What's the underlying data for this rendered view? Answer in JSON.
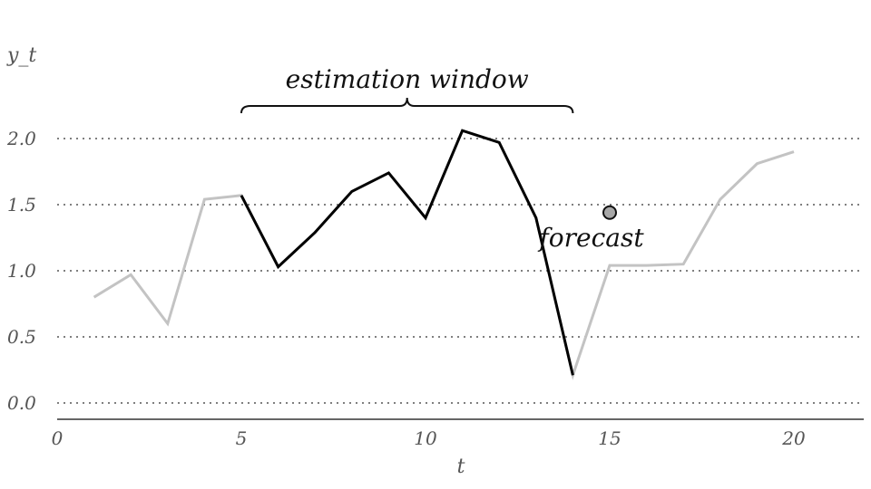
{
  "chart_data": {
    "type": "line",
    "title": "",
    "xlabel": "t",
    "ylabel": "y_t",
    "xlim": [
      0,
      22
    ],
    "ylim": [
      0,
      2.1
    ],
    "x_ticks": [
      "0",
      "5",
      "10",
      "15",
      "20"
    ],
    "y_ticks": [
      "0.0",
      "0.5",
      "1.0",
      "1.5",
      "2.0"
    ],
    "grid": "horizontal dotted",
    "series": [
      {
        "x": [
          1,
          2,
          3,
          4,
          5,
          6,
          7,
          8,
          9,
          10,
          11,
          12,
          13,
          14,
          15,
          16,
          17,
          18,
          19,
          20
        ],
        "y": [
          0.8,
          0.97,
          0.6,
          1.54,
          1.57,
          1.03,
          1.29,
          1.6,
          1.74,
          1.4,
          2.06,
          1.97,
          1.4,
          0.21,
          1.04,
          1.04,
          1.05,
          1.54,
          1.81,
          1.9
        ],
        "color": "#c3c3c3"
      }
    ],
    "highlight": {
      "x_from": 5,
      "x_to": 14,
      "color": "#000000"
    },
    "annotations": [
      {
        "text": "estimation window",
        "kind": "brace",
        "x_from": 5,
        "x_to": 14
      },
      {
        "text": "forecast",
        "kind": "point",
        "x": 15,
        "y": 1.44,
        "color": "#a8a8a8"
      }
    ]
  }
}
